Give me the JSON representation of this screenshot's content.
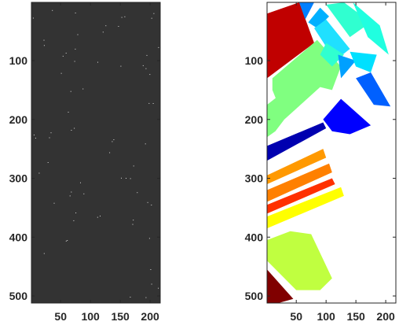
{
  "chart_data": [
    {
      "type": "heatmap",
      "title": "",
      "xlabel": "",
      "ylabel": "",
      "xlim": [
        1,
        217
      ],
      "ylim": [
        1,
        512
      ],
      "y_reversed": true,
      "xticks": [
        50,
        100,
        150,
        200
      ],
      "yticks": [
        100,
        200,
        300,
        400,
        500
      ],
      "xtick_labels": [
        "50",
        "100",
        "150",
        "200"
      ],
      "ytick_labels": [
        "100",
        "200",
        "300",
        "400",
        "500"
      ],
      "background_color": "#333333",
      "content": "mostly uniform dark image with sparse light speckles"
    },
    {
      "type": "heatmap",
      "title": "",
      "xlabel": "",
      "ylabel": "",
      "xlim": [
        1,
        217
      ],
      "ylim": [
        1,
        512
      ],
      "y_reversed": true,
      "xticks": [
        50,
        100,
        150,
        200
      ],
      "yticks": [
        100,
        200,
        300,
        400,
        500
      ],
      "xtick_labels": [
        "50",
        "100",
        "150",
        "200"
      ],
      "ytick_labels": [
        "100",
        "200",
        "300",
        "400",
        "500"
      ],
      "background_color": "#ffffff",
      "colormap": "jet",
      "regions": [
        {
          "color": "#c00000",
          "points": [
            [
              1,
              20
            ],
            [
              55,
              1
            ],
            [
              80,
              70
            ],
            [
              1,
              130
            ]
          ]
        },
        {
          "color": "#80ff80",
          "points": [
            [
              10,
              130
            ],
            [
              85,
              65
            ],
            [
              125,
              110
            ],
            [
              110,
              150
            ],
            [
              90,
              145
            ],
            [
              30,
              200
            ],
            [
              10,
              150
            ]
          ]
        },
        {
          "color": "#80ff80",
          "points": [
            [
              1,
              175
            ],
            [
              20,
              160
            ],
            [
              30,
              200
            ],
            [
              15,
              220
            ],
            [
              1,
              230
            ]
          ]
        },
        {
          "color": "#0080ff",
          "points": [
            [
              55,
              1
            ],
            [
              80,
              1
            ],
            [
              65,
              30
            ]
          ]
        },
        {
          "color": "#00b0ff",
          "points": [
            [
              70,
              35
            ],
            [
              90,
              10
            ],
            [
              105,
              25
            ],
            [
              85,
              45
            ]
          ]
        },
        {
          "color": "#30ffd0",
          "points": [
            [
              100,
              5
            ],
            [
              130,
              1
            ],
            [
              175,
              35
            ],
            [
              140,
              60
            ]
          ]
        },
        {
          "color": "#20e0ff",
          "points": [
            [
              80,
              45
            ],
            [
              100,
              30
            ],
            [
              140,
              80
            ],
            [
              115,
              100
            ]
          ]
        },
        {
          "color": "#20ffe0",
          "points": [
            [
              145,
              1
            ],
            [
              190,
              40
            ],
            [
              205,
              90
            ],
            [
              170,
              60
            ]
          ]
        },
        {
          "color": "#30ffd0",
          "points": [
            [
              100,
              70
            ],
            [
              130,
              90
            ],
            [
              110,
              110
            ],
            [
              90,
              90
            ]
          ]
        },
        {
          "color": "#00a0ff",
          "points": [
            [
              120,
              90
            ],
            [
              150,
              100
            ],
            [
              125,
              130
            ]
          ]
        },
        {
          "color": "#00e0ff",
          "points": [
            [
              140,
              85
            ],
            [
              185,
              90
            ],
            [
              175,
              120
            ],
            [
              150,
              110
            ]
          ]
        },
        {
          "color": "#0060ff",
          "points": [
            [
              150,
              130
            ],
            [
              175,
              120
            ],
            [
              208,
              178
            ],
            [
              180,
              175
            ]
          ]
        },
        {
          "color": "#0000ff",
          "points": [
            [
              95,
              200
            ],
            [
              125,
              165
            ],
            [
              175,
              210
            ],
            [
              140,
              225
            ],
            [
              110,
              220
            ]
          ]
        },
        {
          "color": "#0000b0",
          "points": [
            [
              1,
              245
            ],
            [
              95,
              205
            ],
            [
              100,
              215
            ],
            [
              1,
              270
            ]
          ]
        },
        {
          "color": "#ff9900",
          "points": [
            [
              1,
              295
            ],
            [
              95,
              250
            ],
            [
              100,
              265
            ],
            [
              1,
              310
            ]
          ]
        },
        {
          "color": "#ff8000",
          "points": [
            [
              1,
              320
            ],
            [
              105,
              275
            ],
            [
              110,
              290
            ],
            [
              1,
              340
            ]
          ]
        },
        {
          "color": "#ff3000",
          "points": [
            [
              1,
              345
            ],
            [
              110,
              300
            ],
            [
              115,
              310
            ],
            [
              1,
              360
            ]
          ]
        },
        {
          "color": "#ffff00",
          "points": [
            [
              1,
              365
            ],
            [
              125,
              315
            ],
            [
              130,
              330
            ],
            [
              1,
              385
            ]
          ]
        },
        {
          "color": "#c0ff40",
          "points": [
            [
              1,
              405
            ],
            [
              40,
              390
            ],
            [
              75,
              395
            ],
            [
              110,
              470
            ],
            [
              90,
              490
            ],
            [
              50,
              490
            ],
            [
              1,
              440
            ]
          ]
        },
        {
          "color": "#800000",
          "points": [
            [
              1,
              455
            ],
            [
              45,
              505
            ],
            [
              20,
              512
            ],
            [
              1,
              512
            ]
          ]
        }
      ]
    }
  ]
}
